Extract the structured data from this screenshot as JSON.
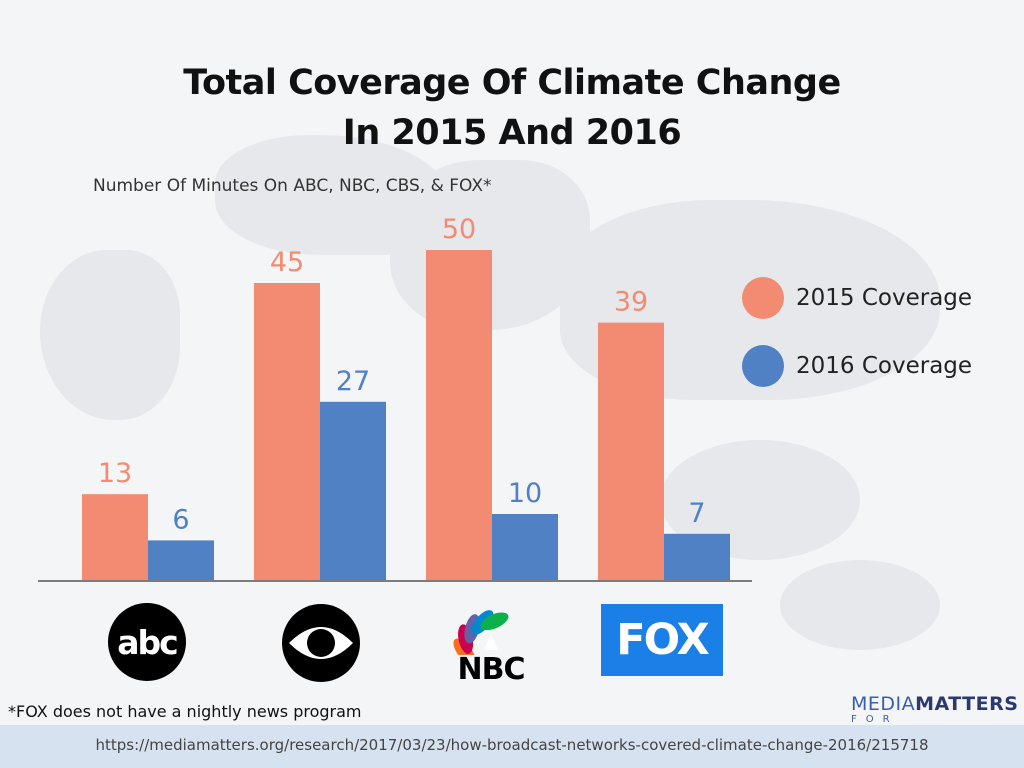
{
  "chart_data": {
    "type": "bar",
    "title": "Total Coverage Of Climate Change In 2015 And 2016",
    "title_lines": [
      "Total Coverage Of Climate Change",
      "In 2015 And 2016"
    ],
    "subtitle": "Number Of Minutes On ABC, NBC, CBS, & FOX*",
    "categories": [
      "ABC",
      "CBS",
      "NBC",
      "FOX"
    ],
    "series": [
      {
        "name": "2015 Coverage",
        "values": [
          13,
          45,
          50,
          39
        ],
        "color": "#f28b72"
      },
      {
        "name": "2016 Coverage",
        "values": [
          6,
          27,
          10,
          7
        ],
        "color": "#4f81c4"
      }
    ],
    "ylim": [
      0,
      50
    ],
    "xlabel": "",
    "ylabel": "",
    "legend_position": "right",
    "grid": false
  },
  "logos": {
    "abc": "abc",
    "cbs": "cbs-eye-icon",
    "nbc": "NBC",
    "fox": "FOX"
  },
  "footnote": "*FOX does not have a nightly news program",
  "brand": {
    "part1": "MEDIA",
    "part2": "MATTERS",
    "sub": "FOR AMERICA"
  },
  "source_url": "https://mediamatters.org/research/2017/03/23/how-broadcast-networks-covered-climate-change-2016/215718",
  "colors": {
    "color_2015": "#f28b72",
    "color_2016": "#4f81c4",
    "fox_blue": "#1b7fe8"
  }
}
